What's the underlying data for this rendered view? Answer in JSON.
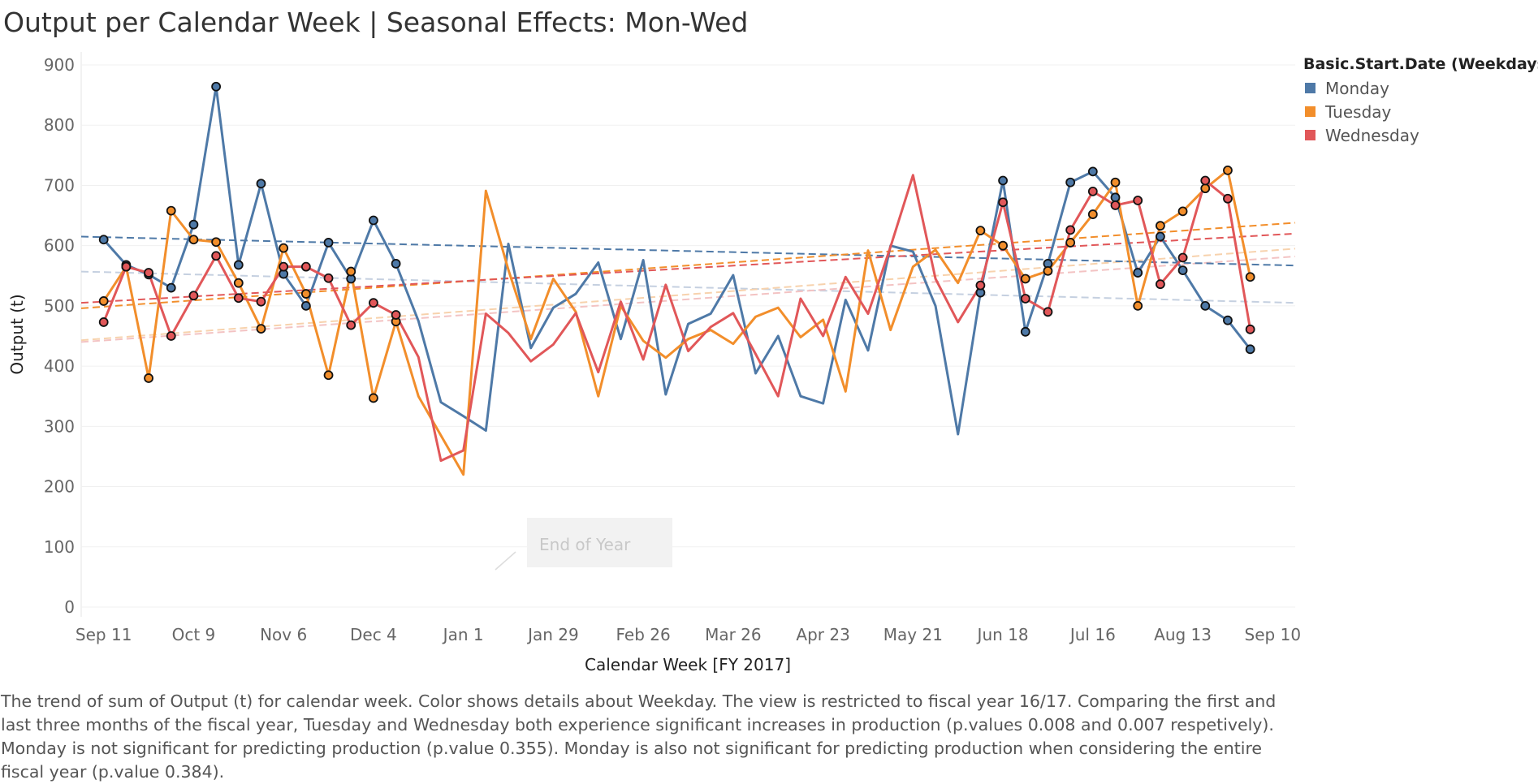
{
  "title": "Output per Calendar Week | Seasonal Effects: Mon-Wed",
  "legend": {
    "title": "Basic.Start.Date (Weekdays)",
    "items": [
      {
        "label": "Monday",
        "color": "#4e79a7"
      },
      {
        "label": "Tuesday",
        "color": "#f28e2b"
      },
      {
        "label": "Wednesday",
        "color": "#e15759"
      }
    ]
  },
  "caption": "The trend of sum of Output (t) for calendar week.  Color shows details about Weekday. The view is restricted to fiscal year 16/17. Comparing the first and last three months of the fiscal year, Tuesday and Wednesday both experience significant increases in production (p.values 0.008 and 0.007 respetively). Monday is not significant for predicting production (p.value 0.355). Monday is also not significant for predicting production when considering the entire fiscal year (p.value 0.384).",
  "annotation": "End of Year",
  "chart_data": {
    "type": "line",
    "xlabel": "Calendar Week [FY 2017]",
    "ylabel": "Output (t)",
    "ylim": [
      0,
      900
    ],
    "yticks": [
      0,
      100,
      200,
      300,
      400,
      500,
      600,
      700,
      800,
      900
    ],
    "grid": true,
    "legend_position": "top-right",
    "x_week_range": [
      0,
      54
    ],
    "xticks": [
      {
        "label": "Sep 11",
        "week": 1
      },
      {
        "label": "Oct 9",
        "week": 5
      },
      {
        "label": "Nov 6",
        "week": 9
      },
      {
        "label": "Dec 4",
        "week": 13
      },
      {
        "label": "Jan 1",
        "week": 17
      },
      {
        "label": "Jan 29",
        "week": 21
      },
      {
        "label": "Feb 26",
        "week": 25
      },
      {
        "label": "Mar 26",
        "week": 29
      },
      {
        "label": "Apr 23",
        "week": 33
      },
      {
        "label": "May 21",
        "week": 37
      },
      {
        "label": "Jun 18",
        "week": 41
      },
      {
        "label": "Jul 16",
        "week": 45
      },
      {
        "label": "Aug 13",
        "week": 49
      },
      {
        "label": "Sep 10",
        "week": 53
      }
    ],
    "series": [
      {
        "name": "Monday",
        "color": "#4e79a7",
        "week_start": 1,
        "values": [
          610,
          568,
          552,
          530,
          635,
          864,
          568,
          703,
          553,
          500,
          605,
          545,
          642,
          570,
          475,
          340,
          317,
          293,
          603,
          430,
          497,
          520,
          572,
          445,
          576,
          353,
          470,
          487,
          551,
          388,
          450,
          350,
          338,
          510,
          426,
          600,
          590,
          500,
          287,
          522,
          708,
          457,
          570,
          705,
          723,
          680,
          555,
          615,
          559,
          500,
          476,
          428
        ],
        "marked_weeks": [
          1,
          2,
          3,
          4,
          5,
          6,
          7,
          8,
          9,
          10,
          11,
          12,
          13,
          14,
          40,
          41,
          42,
          43,
          44,
          45,
          46,
          47,
          48,
          49,
          50,
          51,
          52
        ],
        "trend": [
          615,
          567
        ]
      },
      {
        "name": "Tuesday",
        "color": "#f28e2b",
        "week_start": 1,
        "values": [
          508,
          565,
          380,
          658,
          610,
          606,
          538,
          462,
          596,
          520,
          385,
          557,
          347,
          474,
          350,
          285,
          220,
          691,
          560,
          445,
          545,
          490,
          350,
          500,
          442,
          414,
          445,
          460,
          437,
          482,
          497,
          448,
          477,
          358,
          592,
          460,
          565,
          593,
          538,
          625,
          600,
          545,
          558,
          605,
          652,
          705,
          500,
          633,
          657,
          695,
          725,
          548
        ],
        "marked_weeks": [
          1,
          2,
          3,
          4,
          5,
          6,
          7,
          8,
          9,
          10,
          11,
          12,
          13,
          14,
          40,
          41,
          42,
          43,
          44,
          45,
          46,
          47,
          48,
          49,
          50,
          51,
          52
        ],
        "trend": [
          496,
          638
        ]
      },
      {
        "name": "Wednesday",
        "color": "#e15759",
        "week_start": 1,
        "values": [
          473,
          565,
          555,
          450,
          517,
          583,
          513,
          507,
          565,
          565,
          546,
          468,
          505,
          485,
          415,
          243,
          260,
          487,
          455,
          408,
          436,
          488,
          390,
          507,
          411,
          535,
          425,
          465,
          488,
          420,
          350,
          512,
          450,
          548,
          487,
          598,
          717,
          545,
          473,
          534,
          672,
          512,
          490,
          626,
          690,
          667,
          675,
          536,
          580,
          708,
          678,
          461
        ],
        "marked_weeks": [
          1,
          2,
          3,
          4,
          5,
          6,
          7,
          8,
          9,
          10,
          11,
          12,
          13,
          14,
          40,
          41,
          42,
          43,
          44,
          45,
          46,
          47,
          48,
          49,
          50,
          51,
          52
        ],
        "trend": [
          505,
          620
        ]
      }
    ],
    "faint_trends": [
      {
        "color": "#c5d0e0",
        "values": [
          557,
          505
        ]
      },
      {
        "color": "#f7d2ad",
        "values": [
          443,
          595
        ]
      },
      {
        "color": "#f3c3c3",
        "values": [
          440,
          582
        ]
      }
    ]
  }
}
